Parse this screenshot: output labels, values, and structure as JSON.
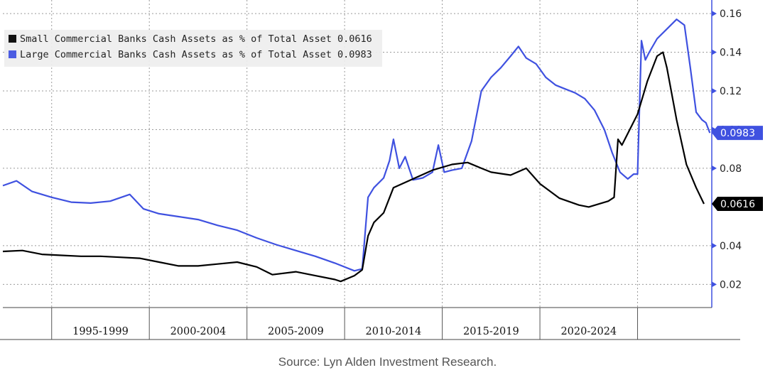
{
  "source": "Source: Lyn Alden Investment Research.",
  "chart_data": {
    "type": "line",
    "title": "",
    "xlabel": "",
    "ylabel": "",
    "x_range": [
      1990.0,
      2026.3
    ],
    "ylim": [
      0.008,
      0.167
    ],
    "y_ticks": [
      0.02,
      0.04,
      0.08,
      0.1,
      0.12,
      0.14,
      0.16
    ],
    "y_tick_labels": [
      "0.02",
      "0.04",
      "0.08",
      "0.10",
      "0.12",
      "0.14",
      "0.16"
    ],
    "grid": true,
    "axis_side": "right",
    "legend_position": "top-left",
    "period_labels": [
      {
        "label": "1995-1999",
        "x_center": 1995.0
      },
      {
        "label": "2000-2004",
        "x_center": 2000.0
      },
      {
        "label": "2005-2009",
        "x_center": 2005.0
      },
      {
        "label": "2010-2014",
        "x_center": 2010.0
      },
      {
        "label": "2015-2019",
        "x_center": 2015.0
      },
      {
        "label": "2020-2024",
        "x_center": 2020.0
      }
    ],
    "period_separators": [
      1992.5,
      1997.5,
      2002.5,
      2007.5,
      2012.5,
      2017.5,
      2022.5
    ],
    "series": [
      {
        "name": "Small Commercial Banks Cash Assets as % of Total Asset",
        "last_value_text": "0.0616",
        "last_value": 0.0616,
        "color": "#000000",
        "points": [
          [
            1990.0,
            0.037
          ],
          [
            1991.0,
            0.0375
          ],
          [
            1992.0,
            0.0355
          ],
          [
            1993.0,
            0.035
          ],
          [
            1994.0,
            0.0345
          ],
          [
            1995.0,
            0.0345
          ],
          [
            1996.0,
            0.034
          ],
          [
            1997.0,
            0.0335
          ],
          [
            1998.0,
            0.0315
          ],
          [
            1999.0,
            0.0295
          ],
          [
            2000.0,
            0.0295
          ],
          [
            2001.0,
            0.0305
          ],
          [
            2002.0,
            0.0315
          ],
          [
            2003.0,
            0.029
          ],
          [
            2003.8,
            0.025
          ],
          [
            2005.0,
            0.0265
          ],
          [
            2006.0,
            0.0245
          ],
          [
            2007.0,
            0.0225
          ],
          [
            2007.3,
            0.0215
          ],
          [
            2008.0,
            0.0245
          ],
          [
            2008.4,
            0.0275
          ],
          [
            2008.7,
            0.045
          ],
          [
            2009.0,
            0.052
          ],
          [
            2009.5,
            0.057
          ],
          [
            2010.0,
            0.07
          ],
          [
            2011.0,
            0.0745
          ],
          [
            2012.0,
            0.079
          ],
          [
            2013.0,
            0.082
          ],
          [
            2013.8,
            0.083
          ],
          [
            2014.5,
            0.08
          ],
          [
            2015.0,
            0.078
          ],
          [
            2016.0,
            0.0765
          ],
          [
            2016.8,
            0.08
          ],
          [
            2017.5,
            0.072
          ],
          [
            2018.5,
            0.0645
          ],
          [
            2019.5,
            0.061
          ],
          [
            2020.0,
            0.06
          ],
          [
            2020.5,
            0.0615
          ],
          [
            2021.0,
            0.063
          ],
          [
            2021.3,
            0.065
          ],
          [
            2021.5,
            0.095
          ],
          [
            2021.7,
            0.092
          ],
          [
            2022.0,
            0.098
          ],
          [
            2022.5,
            0.108
          ],
          [
            2023.0,
            0.125
          ],
          [
            2023.5,
            0.138
          ],
          [
            2023.8,
            0.14
          ],
          [
            2024.0,
            0.132
          ],
          [
            2024.5,
            0.105
          ],
          [
            2025.0,
            0.082
          ],
          [
            2025.5,
            0.07
          ],
          [
            2025.9,
            0.0616
          ]
        ]
      },
      {
        "name": "Large Commercial Banks Cash Assets as % of Total Asset",
        "last_value_text": "0.0983",
        "last_value": 0.0983,
        "color": "#3f51e0",
        "points": [
          [
            1990.0,
            0.071
          ],
          [
            1990.7,
            0.0735
          ],
          [
            1991.5,
            0.068
          ],
          [
            1992.5,
            0.065
          ],
          [
            1993.5,
            0.0625
          ],
          [
            1994.5,
            0.062
          ],
          [
            1995.5,
            0.063
          ],
          [
            1996.5,
            0.0665
          ],
          [
            1997.2,
            0.059
          ],
          [
            1998.0,
            0.0565
          ],
          [
            1999.0,
            0.055
          ],
          [
            2000.0,
            0.0535
          ],
          [
            2001.0,
            0.0505
          ],
          [
            2002.0,
            0.048
          ],
          [
            2003.0,
            0.044
          ],
          [
            2004.0,
            0.0405
          ],
          [
            2005.0,
            0.0375
          ],
          [
            2006.0,
            0.0345
          ],
          [
            2007.0,
            0.031
          ],
          [
            2008.0,
            0.027
          ],
          [
            2008.4,
            0.028
          ],
          [
            2008.7,
            0.065
          ],
          [
            2009.0,
            0.07
          ],
          [
            2009.5,
            0.075
          ],
          [
            2009.8,
            0.084
          ],
          [
            2010.0,
            0.095
          ],
          [
            2010.3,
            0.08
          ],
          [
            2010.6,
            0.086
          ],
          [
            2011.0,
            0.074
          ],
          [
            2011.5,
            0.075
          ],
          [
            2012.0,
            0.078
          ],
          [
            2012.3,
            0.092
          ],
          [
            2012.6,
            0.078
          ],
          [
            2013.0,
            0.079
          ],
          [
            2013.5,
            0.08
          ],
          [
            2014.0,
            0.094
          ],
          [
            2014.5,
            0.12
          ],
          [
            2015.0,
            0.127
          ],
          [
            2015.5,
            0.132
          ],
          [
            2016.0,
            0.138
          ],
          [
            2016.4,
            0.143
          ],
          [
            2016.8,
            0.137
          ],
          [
            2017.3,
            0.134
          ],
          [
            2017.8,
            0.127
          ],
          [
            2018.3,
            0.123
          ],
          [
            2018.8,
            0.121
          ],
          [
            2019.3,
            0.119
          ],
          [
            2019.8,
            0.116
          ],
          [
            2020.3,
            0.11
          ],
          [
            2020.8,
            0.1
          ],
          [
            2021.2,
            0.088
          ],
          [
            2021.6,
            0.078
          ],
          [
            2022.0,
            0.0745
          ],
          [
            2022.3,
            0.077
          ],
          [
            2022.5,
            0.077
          ],
          [
            2022.7,
            0.146
          ],
          [
            2022.9,
            0.136
          ],
          [
            2023.1,
            0.14
          ],
          [
            2023.5,
            0.147
          ],
          [
            2024.0,
            0.152
          ],
          [
            2024.5,
            0.157
          ],
          [
            2024.9,
            0.154
          ],
          [
            2025.2,
            0.132
          ],
          [
            2025.5,
            0.109
          ],
          [
            2025.8,
            0.105
          ],
          [
            2026.0,
            0.1035
          ],
          [
            2026.2,
            0.0983
          ]
        ]
      }
    ]
  }
}
